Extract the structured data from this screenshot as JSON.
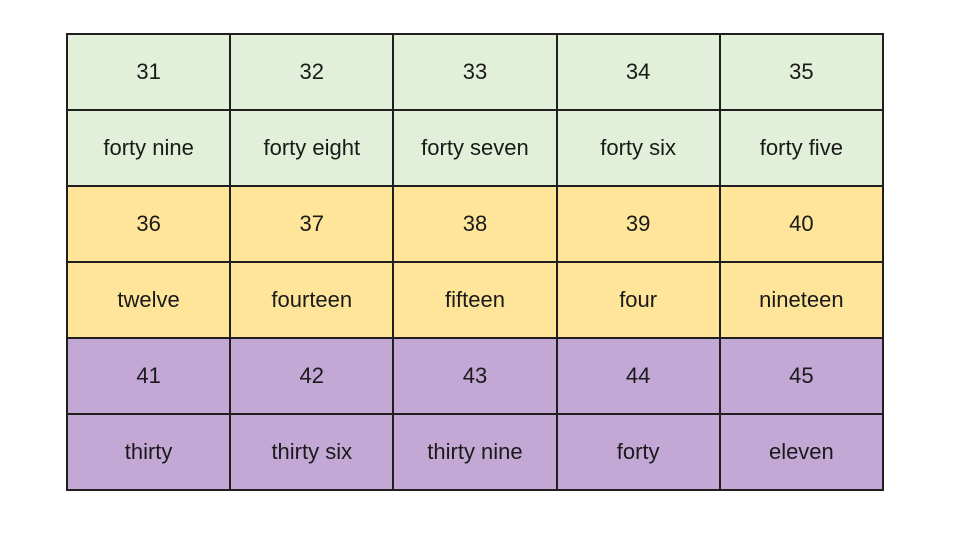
{
  "table": {
    "bands": [
      {
        "color": "#e2efd9",
        "numbers": [
          "31",
          "32",
          "33",
          "34",
          "35"
        ],
        "words": [
          "forty nine",
          "forty eight",
          "forty seven",
          "forty six",
          "forty five"
        ]
      },
      {
        "color": "#fee599",
        "numbers": [
          "36",
          "37",
          "38",
          "39",
          "40"
        ],
        "words": [
          "twelve",
          "fourteen",
          "fifteen",
          "four",
          "nineteen"
        ]
      },
      {
        "color": "#c3a8d6",
        "numbers": [
          "41",
          "42",
          "43",
          "44",
          "45"
        ],
        "words": [
          "thirty",
          "thirty six",
          "thirty nine",
          "forty",
          "eleven"
        ]
      }
    ]
  }
}
